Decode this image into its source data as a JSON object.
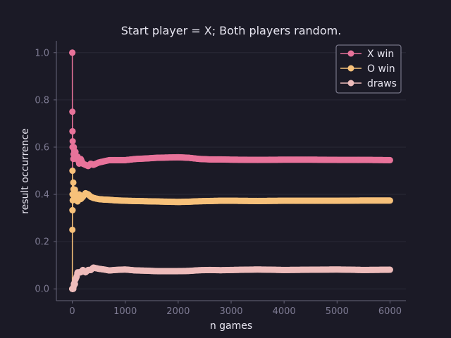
{
  "chart_data": {
    "type": "line",
    "title": "Start player = X; Both players random.",
    "xlabel": "n games",
    "ylabel": "result occurrence",
    "xlim": [
      -300,
      6300
    ],
    "ylim": [
      -0.05,
      1.05
    ],
    "xticks": [
      0,
      1000,
      2000,
      3000,
      4000,
      5000,
      6000
    ],
    "xtick_labels": [
      "0",
      "1000",
      "2000",
      "3000",
      "4000",
      "5000",
      "6000"
    ],
    "yticks": [
      0.0,
      0.2,
      0.4,
      0.6,
      0.8,
      1.0
    ],
    "ytick_labels": [
      "0.0",
      "0.2",
      "0.4",
      "0.6",
      "0.8",
      "1.0"
    ],
    "grid": true,
    "legend_position": "top-right",
    "series": [
      {
        "name": "X win",
        "color": "#e8739a",
        "x": [
          1,
          2,
          3,
          4,
          5,
          6,
          8,
          10,
          15,
          20,
          30,
          40,
          50,
          60,
          80,
          100,
          130,
          160,
          200,
          250,
          300,
          350,
          400,
          500,
          600,
          700,
          800,
          900,
          1000,
          1200,
          1400,
          1600,
          1800,
          2000,
          2200,
          2400,
          2600,
          2800,
          3000,
          3500,
          4000,
          4500,
          5000,
          5500,
          6000
        ],
        "y": [
          1.0,
          0.75,
          0.667,
          0.5,
          0.6,
          0.667,
          0.625,
          0.6,
          0.6,
          0.55,
          0.6,
          0.575,
          0.56,
          0.58,
          0.55,
          0.56,
          0.53,
          0.55,
          0.53,
          0.525,
          0.52,
          0.53,
          0.525,
          0.535,
          0.54,
          0.545,
          0.545,
          0.545,
          0.545,
          0.55,
          0.552,
          0.555,
          0.556,
          0.557,
          0.555,
          0.55,
          0.548,
          0.548,
          0.547,
          0.546,
          0.547,
          0.547,
          0.546,
          0.546,
          0.545
        ]
      },
      {
        "name": "O win",
        "color": "#f7c17a",
        "x": [
          1,
          2,
          3,
          4,
          5,
          6,
          8,
          10,
          15,
          20,
          30,
          40,
          50,
          60,
          80,
          100,
          130,
          160,
          200,
          250,
          300,
          350,
          400,
          500,
          600,
          700,
          800,
          900,
          1000,
          1200,
          1400,
          1600,
          1800,
          2000,
          2200,
          2400,
          2600,
          2800,
          3000,
          3500,
          4000,
          4500,
          5000,
          5500,
          6000
        ],
        "y": [
          0.0,
          0.25,
          0.333,
          0.5,
          0.4,
          0.333,
          0.375,
          0.4,
          0.4,
          0.45,
          0.38,
          0.4,
          0.42,
          0.38,
          0.4,
          0.37,
          0.4,
          0.38,
          0.39,
          0.405,
          0.4,
          0.39,
          0.385,
          0.38,
          0.378,
          0.377,
          0.375,
          0.374,
          0.373,
          0.372,
          0.371,
          0.37,
          0.369,
          0.368,
          0.369,
          0.371,
          0.372,
          0.373,
          0.373,
          0.372,
          0.373,
          0.373,
          0.373,
          0.374,
          0.374
        ]
      },
      {
        "name": "draws",
        "color": "#eebcbb",
        "x": [
          1,
          2,
          3,
          4,
          5,
          6,
          8,
          10,
          15,
          20,
          30,
          40,
          50,
          60,
          80,
          100,
          130,
          160,
          200,
          250,
          300,
          350,
          400,
          500,
          600,
          700,
          800,
          900,
          1000,
          1200,
          1400,
          1600,
          1800,
          2000,
          2200,
          2400,
          2600,
          2800,
          3000,
          3500,
          4000,
          4500,
          5000,
          5500,
          6000
        ],
        "y": [
          0.0,
          0.0,
          0.0,
          0.0,
          0.0,
          0.0,
          0.0,
          0.0,
          0.0,
          0.0,
          0.02,
          0.025,
          0.02,
          0.04,
          0.05,
          0.07,
          0.07,
          0.07,
          0.08,
          0.07,
          0.08,
          0.08,
          0.09,
          0.085,
          0.082,
          0.078,
          0.08,
          0.081,
          0.082,
          0.078,
          0.077,
          0.075,
          0.075,
          0.075,
          0.076,
          0.079,
          0.08,
          0.079,
          0.08,
          0.082,
          0.08,
          0.081,
          0.082,
          0.08,
          0.081
        ]
      }
    ]
  },
  "colors": {
    "background": "#1b1a26",
    "axis": "#67657a",
    "grid": "#2a2937",
    "tick_text": "#7d7a92",
    "label_text": "#e6e4ef"
  }
}
